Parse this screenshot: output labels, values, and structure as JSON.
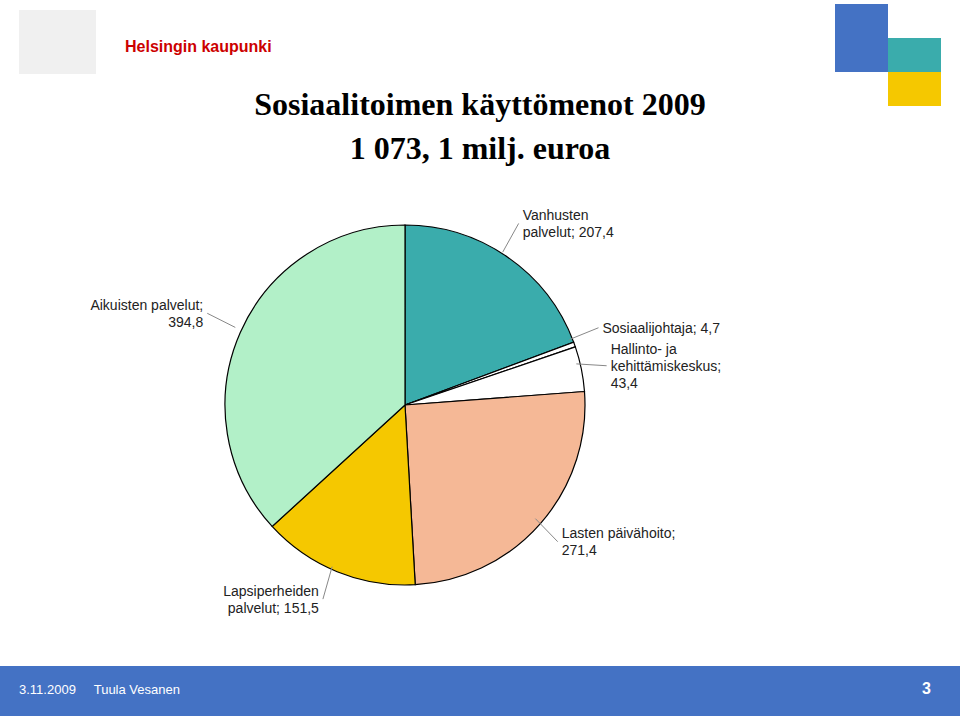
{
  "chart_data": {
    "type": "pie",
    "title": "Sosiaalitoimen käyttömenot 2009",
    "subtitle": "1 073, 1 milj. euroa",
    "categories": [
      "Vanhusten\npalvelut; 207,4",
      "Sosiaalijohtaja; 4,7",
      "Hallinto- ja\nkehittämiskeskus;\n43,4",
      "Lasten päivähoito;\n271,4",
      "Lapsiperheiden\npalvelut; 151,5",
      "Aikuisten palvelut;\n394,8"
    ],
    "values": [
      207.4,
      4.7,
      43.4,
      271.4,
      151.5,
      394.8
    ],
    "colors": [
      "#3aacac",
      "#ffffff",
      "#ffffff",
      "#f5b896",
      "#f5c800",
      "#b2f0c8"
    ],
    "data_labels": true,
    "annotations": [
      "Helsingin kaupunki",
      "3.11.2009     Tuula Vesanen",
      "3"
    ]
  }
}
